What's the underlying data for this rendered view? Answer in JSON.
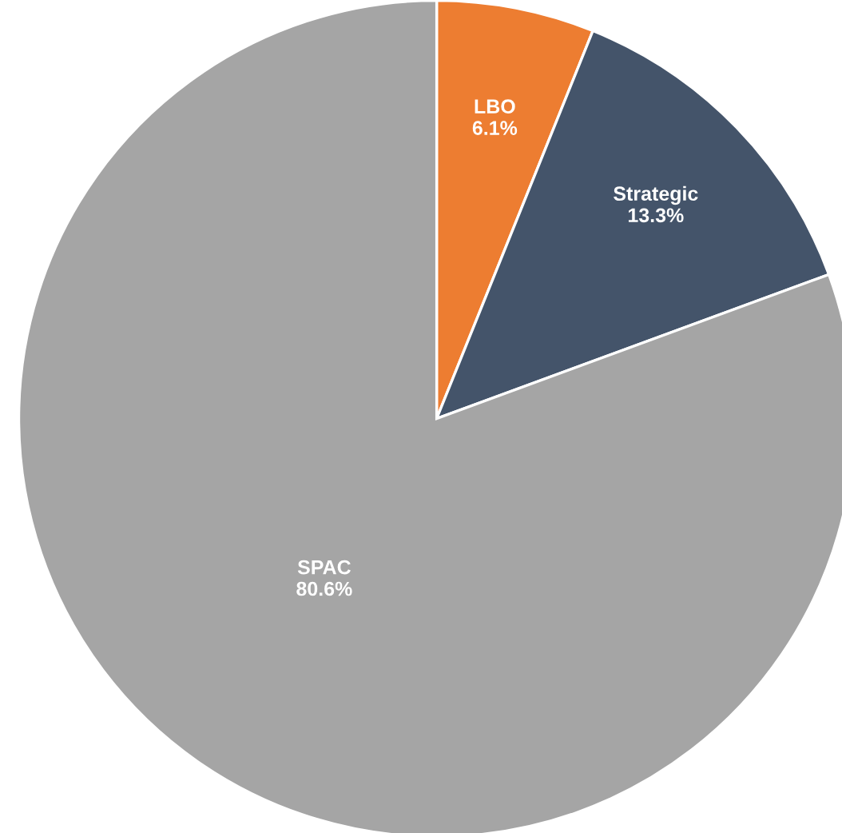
{
  "chart_data": {
    "type": "pie",
    "categories": [
      "LBO",
      "Strategic",
      "SPAC"
    ],
    "values": [
      6.1,
      13.3,
      80.6
    ],
    "colors": [
      "#ed7d31",
      "#44546a",
      "#a5a5a5"
    ],
    "value_labels": [
      "6.1%",
      "13.3%",
      "80.6%"
    ],
    "legend": false
  }
}
